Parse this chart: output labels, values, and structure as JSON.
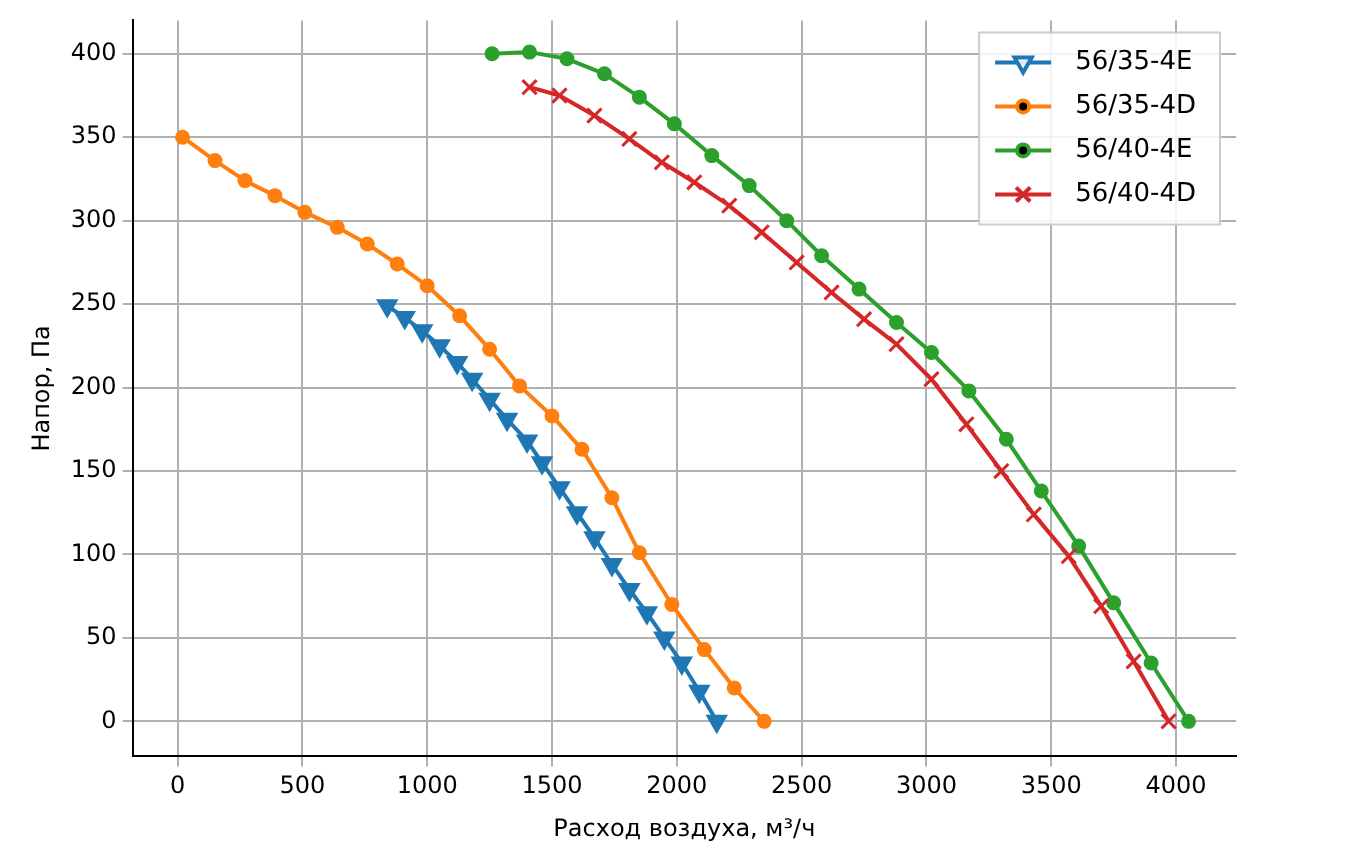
{
  "chart_data": {
    "type": "line",
    "xlabel": "Расход воздуха, м³/ч",
    "ylabel": "Напор, Па",
    "xlim": [
      -180,
      4240
    ],
    "ylim": [
      -21,
      420
    ],
    "xticks": [
      0,
      500,
      1000,
      1500,
      2000,
      2500,
      3000,
      3500,
      4000
    ],
    "yticks": [
      0,
      50,
      100,
      150,
      200,
      250,
      300,
      350,
      400
    ],
    "grid": true,
    "legend": "top right",
    "line_style": "solid",
    "series": [
      {
        "name": "56/35-4E",
        "color": "#1f77b4",
        "marker": "triangle",
        "x": [
          840,
          910,
          980,
          1050,
          1120,
          1180,
          1250,
          1320,
          1400,
          1460,
          1530,
          1600,
          1670,
          1740,
          1810,
          1880,
          1950,
          2020,
          2090,
          2160
        ],
        "values": [
          249,
          242,
          234,
          225,
          215,
          205,
          193,
          181,
          168,
          155,
          140,
          125,
          110,
          94,
          79,
          65,
          50,
          35,
          18,
          0
        ]
      },
      {
        "name": "56/35-4D",
        "color": "#ff7f0e",
        "marker": "circle",
        "x": [
          20,
          150,
          270,
          390,
          510,
          640,
          760,
          880,
          1000,
          1130,
          1250,
          1370,
          1500,
          1620,
          1740,
          1850,
          1980,
          2110,
          2230,
          2350
        ],
        "values": [
          350,
          336,
          324,
          315,
          305,
          296,
          286,
          274,
          261,
          243,
          223,
          201,
          183,
          163,
          134,
          101,
          70,
          43,
          20,
          0
        ]
      },
      {
        "name": "56/40-4E",
        "color": "#2ca02c",
        "marker": "circle",
        "x": [
          1260,
          1410,
          1560,
          1710,
          1850,
          1990,
          2140,
          2290,
          2440,
          2580,
          2730,
          2880,
          3020,
          3170,
          3320,
          3460,
          3610,
          3750,
          3900,
          4050
        ],
        "values": [
          400,
          401,
          397,
          388,
          374,
          358,
          339,
          321,
          300,
          279,
          259,
          239,
          221,
          198,
          169,
          138,
          105,
          71,
          35,
          0
        ]
      },
      {
        "name": "56/40-4D",
        "color": "#d62728",
        "marker": "cross",
        "x": [
          1410,
          1530,
          1670,
          1810,
          1940,
          2070,
          2210,
          2340,
          2480,
          2620,
          2750,
          2880,
          3020,
          3160,
          3300,
          3430,
          3570,
          3700,
          3830,
          3970
        ],
        "values": [
          380,
          375,
          363,
          349,
          335,
          323,
          309,
          293,
          275,
          257,
          241,
          226,
          205,
          178,
          150,
          124,
          99,
          69,
          36,
          0
        ]
      }
    ]
  }
}
